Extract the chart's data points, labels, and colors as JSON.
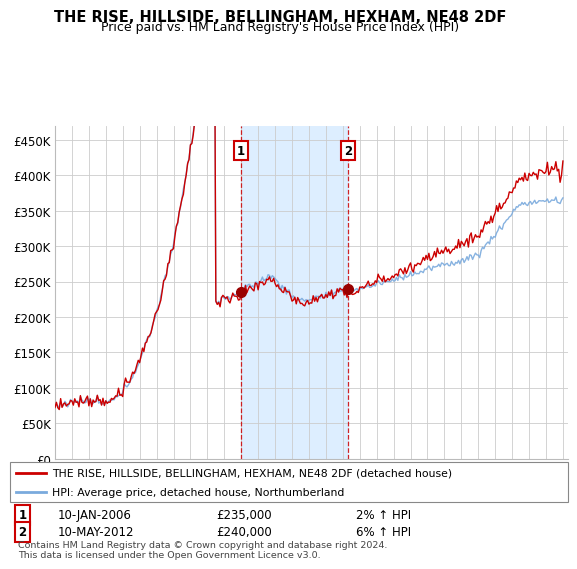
{
  "title": "THE RISE, HILLSIDE, BELLINGHAM, HEXHAM, NE48 2DF",
  "subtitle": "Price paid vs. HM Land Registry's House Price Index (HPI)",
  "legend_line1": "THE RISE, HILLSIDE, BELLINGHAM, HEXHAM, NE48 2DF (detached house)",
  "legend_line2": "HPI: Average price, detached house, Northumberland",
  "annotation1_label": "1",
  "annotation1_date": "10-JAN-2006",
  "annotation1_price": "£235,000",
  "annotation1_hpi": "2% ↑ HPI",
  "annotation2_label": "2",
  "annotation2_date": "10-MAY-2012",
  "annotation2_price": "£240,000",
  "annotation2_hpi": "6% ↑ HPI",
  "footer": "Contains HM Land Registry data © Crown copyright and database right 2024.\nThis data is licensed under the Open Government Licence v3.0.",
  "red_color": "#cc0000",
  "blue_color": "#7aaadd",
  "background_color": "#ffffff",
  "grid_color": "#cccccc",
  "span_color": "#ddeeff",
  "ylim": [
    0,
    470000
  ],
  "yticks": [
    0,
    50000,
    100000,
    150000,
    200000,
    250000,
    300000,
    350000,
    400000,
    450000
  ],
  "start_year": 1995,
  "end_year": 2025,
  "purchase1_year": 2006.04,
  "purchase1_price": 235000,
  "purchase2_year": 2012.37,
  "purchase2_price": 240000
}
